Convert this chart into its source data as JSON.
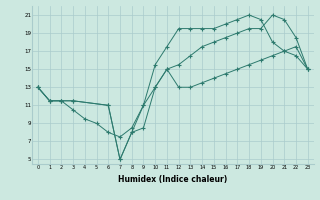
{
  "xlabel": "Humidex (Indice chaleur)",
  "background_color": "#cce8e0",
  "grid_color": "#aacccc",
  "line_color": "#2d7a6e",
  "xlim": [
    -0.5,
    23.5
  ],
  "ylim": [
    4.5,
    22
  ],
  "xticks": [
    0,
    1,
    2,
    3,
    4,
    5,
    6,
    7,
    8,
    9,
    10,
    11,
    12,
    13,
    14,
    15,
    16,
    17,
    18,
    19,
    20,
    21,
    22,
    23
  ],
  "yticks": [
    5,
    7,
    9,
    11,
    13,
    15,
    17,
    19,
    21
  ],
  "line1_x": [
    0,
    1,
    2,
    3,
    4,
    5,
    6,
    7,
    8,
    9,
    10,
    11,
    12,
    13,
    14,
    15,
    16,
    17,
    18,
    19,
    20,
    21,
    22,
    23
  ],
  "line1_y": [
    13,
    11.5,
    11.5,
    10.5,
    9.5,
    9.0,
    8.0,
    7.5,
    8.5,
    11.0,
    15.5,
    17.5,
    19.5,
    19.5,
    19.5,
    19.5,
    20.0,
    20.5,
    21.0,
    20.5,
    18.0,
    17.0,
    16.5,
    15.0
  ],
  "line2_x": [
    0,
    1,
    2,
    3,
    6,
    7,
    8,
    9,
    10,
    11,
    12,
    13,
    14,
    15,
    16,
    17,
    18,
    19,
    20,
    21,
    22,
    23
  ],
  "line2_y": [
    13,
    11.5,
    11.5,
    11.5,
    11.0,
    5.0,
    8.0,
    8.5,
    13.0,
    15.0,
    13.0,
    13.0,
    13.5,
    14.0,
    14.5,
    15.0,
    15.5,
    16.0,
    16.5,
    17.0,
    17.5,
    15.0
  ],
  "line3_x": [
    0,
    1,
    2,
    3,
    6,
    7,
    8,
    9,
    10,
    11,
    12,
    13,
    14,
    15,
    16,
    17,
    18,
    19,
    20,
    21,
    22,
    23
  ],
  "line3_y": [
    13,
    11.5,
    11.5,
    11.5,
    11.0,
    5.0,
    8.0,
    11.0,
    13.0,
    15.0,
    15.5,
    16.5,
    17.5,
    18.0,
    18.5,
    19.0,
    19.5,
    19.5,
    21.0,
    20.5,
    18.5,
    15.0
  ]
}
